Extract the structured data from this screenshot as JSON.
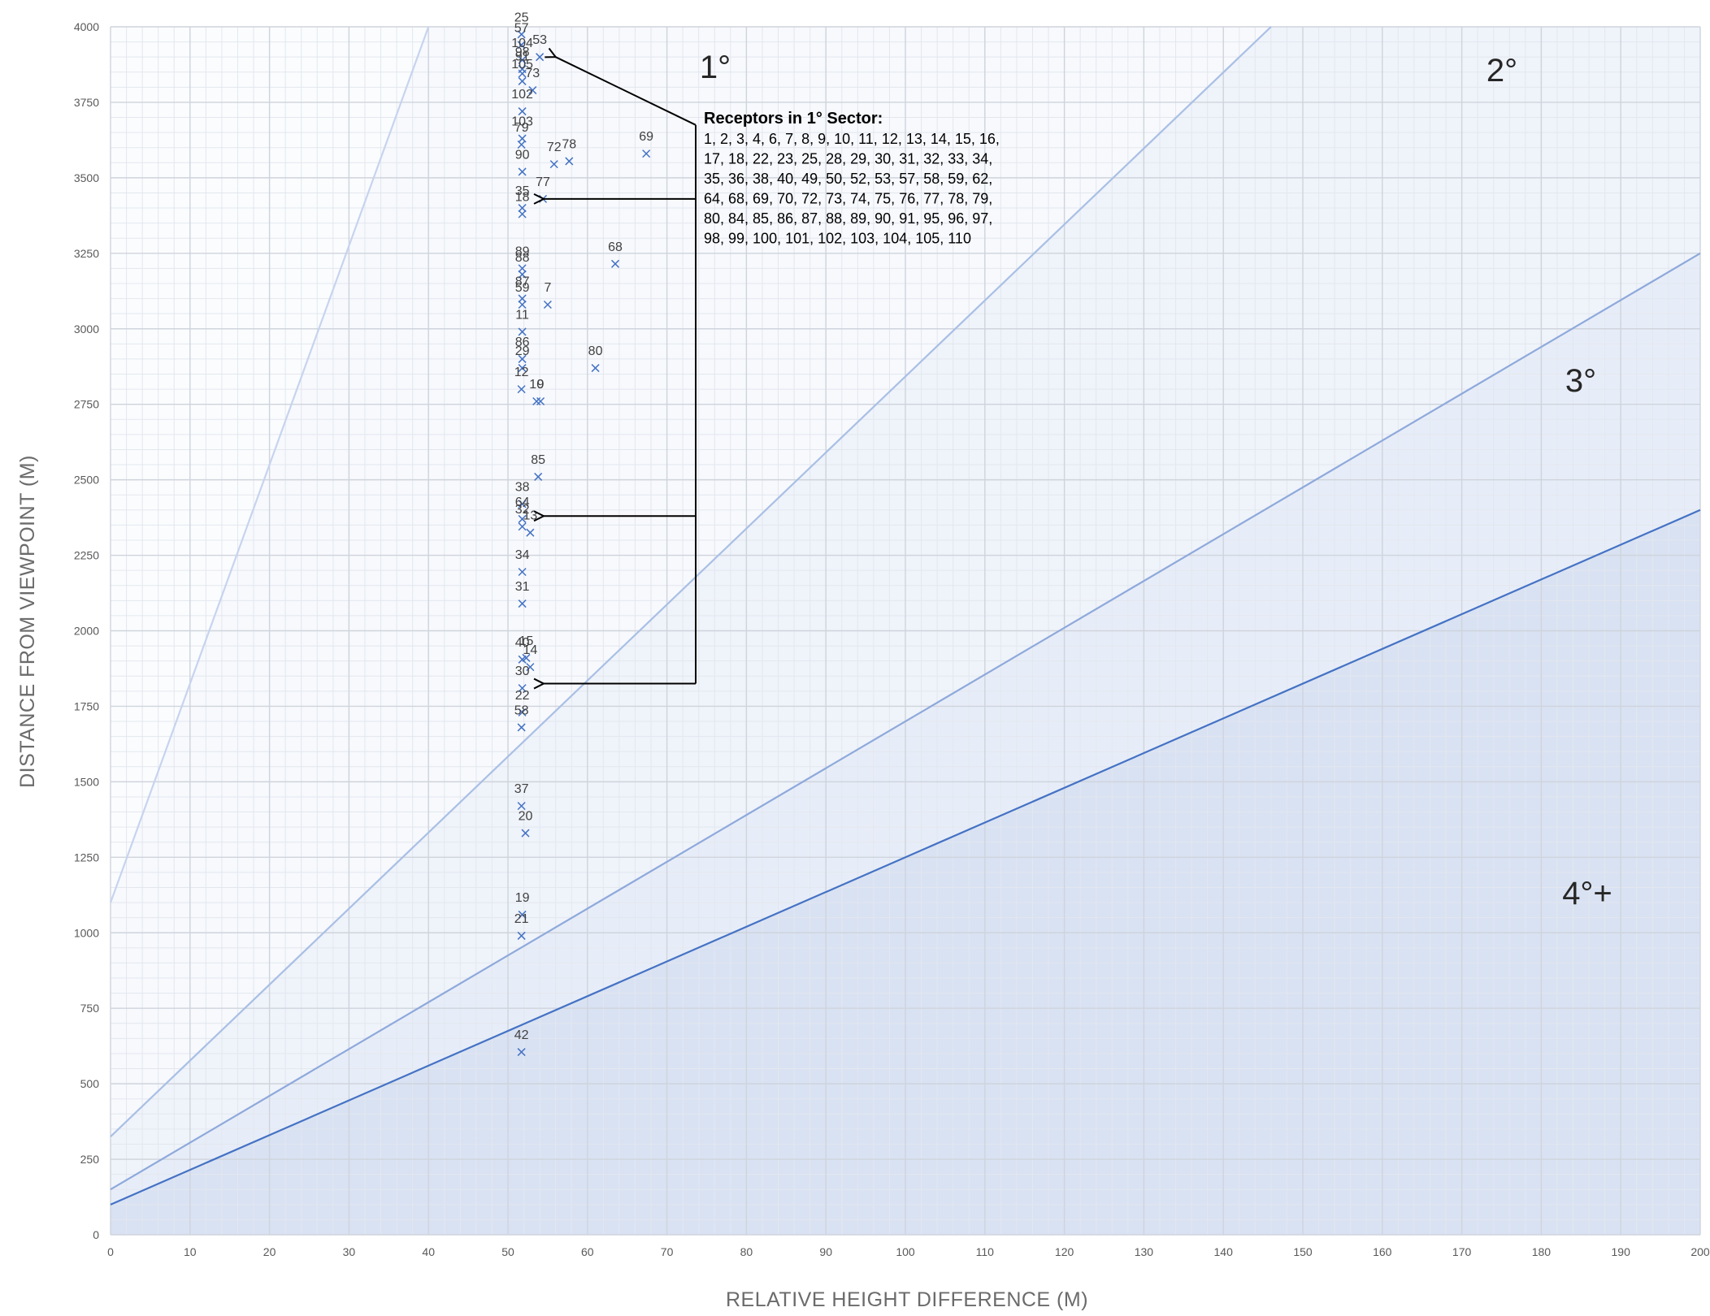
{
  "chart_data": {
    "type": "scatter",
    "title": "",
    "xlabel": "RELATIVE HEIGHT DIFFERENCE (M)",
    "ylabel": "DISTANCE FROM VIEWPOINT (M)",
    "xlim": [
      0,
      200
    ],
    "ylim": [
      0,
      4000
    ],
    "x_ticks": [
      0,
      10,
      20,
      30,
      40,
      50,
      60,
      70,
      80,
      90,
      100,
      110,
      120,
      130,
      140,
      150,
      160,
      170,
      180,
      190,
      200
    ],
    "y_ticks": [
      0,
      250,
      500,
      750,
      1000,
      1250,
      1500,
      1750,
      2000,
      2250,
      2500,
      2750,
      3000,
      3250,
      3500,
      3750,
      4000
    ],
    "grid": true,
    "marker": "x",
    "marker_color": "#4472c4",
    "points": [
      {
        "label": "25",
        "x": 51.7,
        "y": 3975
      },
      {
        "label": "57",
        "x": 51.7,
        "y": 3940
      },
      {
        "label": "53",
        "x": 54.0,
        "y": 3900
      },
      {
        "label": "104",
        "x": 51.8,
        "y": 3890
      },
      {
        "label": "98",
        "x": 51.8,
        "y": 3860
      },
      {
        "label": "91",
        "x": 51.8,
        "y": 3845
      },
      {
        "label": "73",
        "x": 53.1,
        "y": 3790
      },
      {
        "label": "105",
        "x": 51.8,
        "y": 3820
      },
      {
        "label": "102",
        "x": 51.8,
        "y": 3720
      },
      {
        "label": "103",
        "x": 51.8,
        "y": 3630
      },
      {
        "label": "79",
        "x": 51.7,
        "y": 3610
      },
      {
        "label": "72",
        "x": 55.8,
        "y": 3545
      },
      {
        "label": "78",
        "x": 57.7,
        "y": 3555
      },
      {
        "label": "69",
        "x": 67.4,
        "y": 3580
      },
      {
        "label": "90",
        "x": 51.8,
        "y": 3520
      },
      {
        "label": "77",
        "x": 54.4,
        "y": 3430
      },
      {
        "label": "35",
        "x": 51.8,
        "y": 3400
      },
      {
        "label": "18",
        "x": 51.8,
        "y": 3380
      },
      {
        "label": "68",
        "x": 63.5,
        "y": 3215
      },
      {
        "label": "89",
        "x": 51.8,
        "y": 3200
      },
      {
        "label": "88",
        "x": 51.8,
        "y": 3180
      },
      {
        "label": "87",
        "x": 51.8,
        "y": 3100
      },
      {
        "label": "59",
        "x": 51.8,
        "y": 3080
      },
      {
        "label": "7",
        "x": 55.0,
        "y": 3080
      },
      {
        "label": "11",
        "x": 51.8,
        "y": 2990
      },
      {
        "label": "80",
        "x": 61.0,
        "y": 2870
      },
      {
        "label": "86",
        "x": 51.8,
        "y": 2900
      },
      {
        "label": "29",
        "x": 51.8,
        "y": 2870
      },
      {
        "label": "12",
        "x": 51.7,
        "y": 2800
      },
      {
        "label": "10",
        "x": 53.6,
        "y": 2760
      },
      {
        "label": "9",
        "x": 54.1,
        "y": 2760
      },
      {
        "label": "85",
        "x": 53.8,
        "y": 2510
      },
      {
        "label": "38",
        "x": 51.8,
        "y": 2420
      },
      {
        "label": "64",
        "x": 51.8,
        "y": 2370
      },
      {
        "label": "32",
        "x": 51.8,
        "y": 2345
      },
      {
        "label": "13",
        "x": 52.8,
        "y": 2325
      },
      {
        "label": "34",
        "x": 51.8,
        "y": 2195
      },
      {
        "label": "31",
        "x": 51.8,
        "y": 2090
      },
      {
        "label": "40",
        "x": 51.8,
        "y": 1905
      },
      {
        "label": "15",
        "x": 52.3,
        "y": 1910
      },
      {
        "label": "14",
        "x": 52.8,
        "y": 1880
      },
      {
        "label": "30",
        "x": 51.8,
        "y": 1810
      },
      {
        "label": "22",
        "x": 51.8,
        "y": 1730
      },
      {
        "label": "58",
        "x": 51.7,
        "y": 1680
      },
      {
        "label": "37",
        "x": 51.7,
        "y": 1420
      },
      {
        "label": "20",
        "x": 52.2,
        "y": 1330
      },
      {
        "label": "19",
        "x": 51.8,
        "y": 1060
      },
      {
        "label": "21",
        "x": 51.7,
        "y": 990
      },
      {
        "label": "42",
        "x": 51.7,
        "y": 605
      }
    ],
    "sector_curves": [
      {
        "name": "1°",
        "x": [
          0,
          40
        ],
        "y": [
          1100,
          4000
        ],
        "color": "#c7d4ee",
        "fill_color": "#f7f9fd"
      },
      {
        "name": "2°",
        "x": [
          0,
          146
        ],
        "y": [
          325,
          4000
        ],
        "color": "#a9bfe5",
        "fill_color": "#eff3fa"
      },
      {
        "name": "3°",
        "x": [
          0,
          200
        ],
        "y": [
          150,
          3250
        ],
        "color": "#8ea9db",
        "fill_color": "#e7edf8"
      },
      {
        "name": "4°+",
        "x": [
          0,
          200
        ],
        "y": [
          100,
          2400
        ],
        "color": "#4472c4",
        "fill_color": "#d9e2f3"
      }
    ],
    "sector_labels": [
      "1°",
      "2°",
      "3°",
      "4°+"
    ],
    "annotation": {
      "title": "Receptors in 1° Sector:",
      "lines": [
        "1, 2, 3, 4, 6, 7, 8, 9, 10, 11, 12, 13, 14, 15, 16,",
        "17, 18, 22, 23, 25, 28, 29, 30, 31, 32, 33, 34,",
        "35, 36, 38, 40, 49, 50, 52, 53, 57, 58, 59, 62,",
        "64, 68, 69, 70, 72, 73, 74, 75, 76, 77, 78, 79,",
        "80, 84, 85, 86, 87, 88, 89, 90, 91, 95, 96, 97,",
        "98, 99, 100, 101, 102, 103, 104, 105, 110"
      ],
      "arrow_targets_y": [
        3900,
        3430,
        2380,
        1825
      ]
    }
  }
}
